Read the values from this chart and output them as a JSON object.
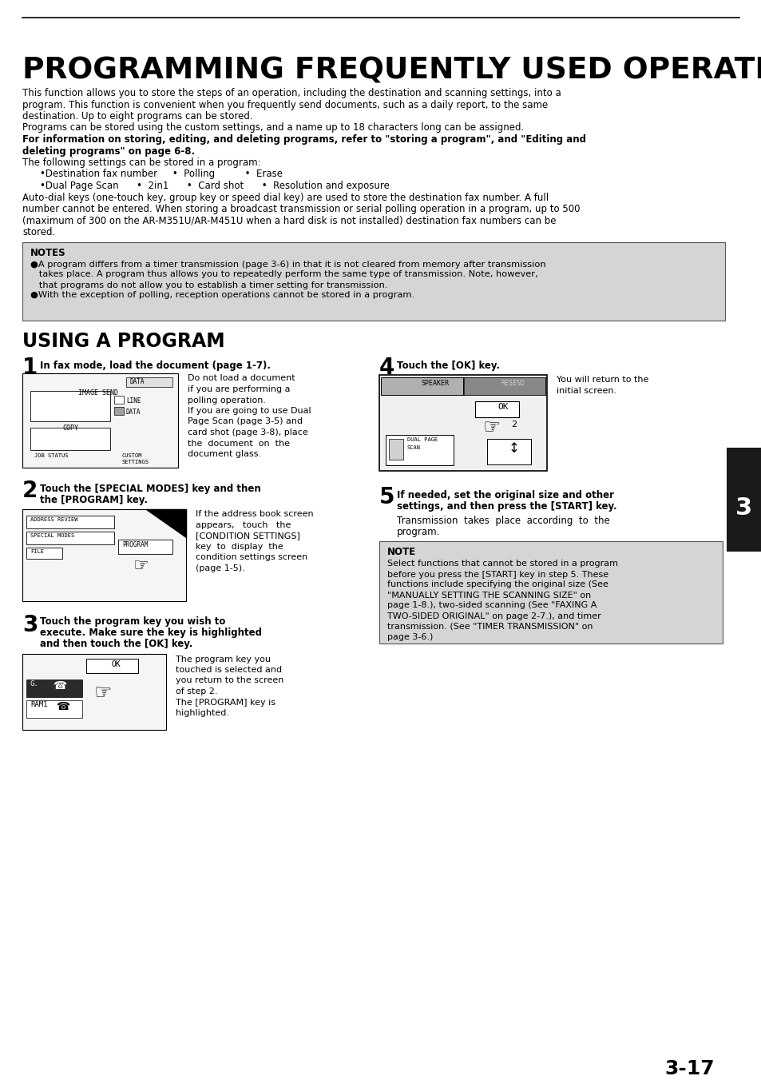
{
  "title": "PROGRAMMING FREQUENTLY USED OPERATIONS",
  "bg_color": "#ffffff",
  "page_number": "3-17",
  "chapter_number": "3"
}
